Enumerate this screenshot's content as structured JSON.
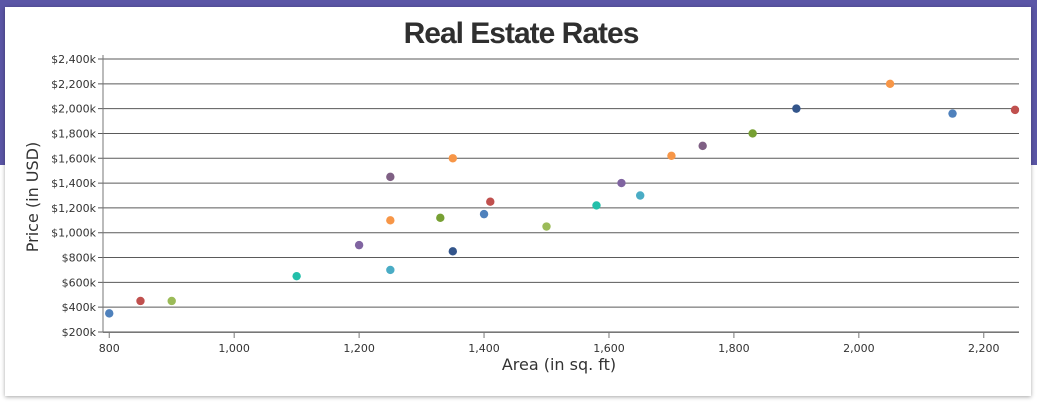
{
  "theme": {
    "band_color": "#5b56a6",
    "grid_color": "#5a5a5a",
    "axis_color": "#777777"
  },
  "chart_data": {
    "type": "scatter",
    "title": "Real Estate Rates",
    "xlabel": "Area (in sq. ft)",
    "ylabel": "Price (in USD)",
    "xlim": [
      790,
      2250
    ],
    "ylim": [
      200,
      2400
    ],
    "grid": true,
    "x_ticks": [
      "800",
      "1,000",
      "1,200",
      "1,400",
      "1,600",
      "1,800",
      "2,000",
      "2,200"
    ],
    "y_ticks": [
      "$200k",
      "$400k",
      "$600k",
      "$800k",
      "$1,000k",
      "$1,200k",
      "$1,400k",
      "$1,600k",
      "$1,800k",
      "$2,000k",
      "$2,200k",
      "$2,400k"
    ],
    "points": [
      {
        "x": 800,
        "y": 350,
        "color": "#4f81bc"
      },
      {
        "x": 850,
        "y": 450,
        "color": "#c0504e"
      },
      {
        "x": 900,
        "y": 450,
        "color": "#9bbb58"
      },
      {
        "x": 1100,
        "y": 650,
        "color": "#23bfaa"
      },
      {
        "x": 1200,
        "y": 900,
        "color": "#8064a1"
      },
      {
        "x": 1250,
        "y": 700,
        "color": "#4aacc5"
      },
      {
        "x": 1250,
        "y": 1100,
        "color": "#f79647"
      },
      {
        "x": 1250,
        "y": 1450,
        "color": "#7f6084"
      },
      {
        "x": 1330,
        "y": 1120,
        "color": "#77a033"
      },
      {
        "x": 1350,
        "y": 850,
        "color": "#33558b"
      },
      {
        "x": 1350,
        "y": 1600,
        "color": "#f79647"
      },
      {
        "x": 1400,
        "y": 1150,
        "color": "#4f81bc"
      },
      {
        "x": 1410,
        "y": 1250,
        "color": "#c0504e"
      },
      {
        "x": 1500,
        "y": 1050,
        "color": "#9bbb58"
      },
      {
        "x": 1580,
        "y": 1220,
        "color": "#23bfaa"
      },
      {
        "x": 1620,
        "y": 1400,
        "color": "#8064a1"
      },
      {
        "x": 1650,
        "y": 1300,
        "color": "#4aacc5"
      },
      {
        "x": 1700,
        "y": 1620,
        "color": "#f79647"
      },
      {
        "x": 1750,
        "y": 1700,
        "color": "#7f6084"
      },
      {
        "x": 1830,
        "y": 1800,
        "color": "#77a033"
      },
      {
        "x": 1900,
        "y": 2000,
        "color": "#33558b"
      },
      {
        "x": 2050,
        "y": 2200,
        "color": "#f79647"
      },
      {
        "x": 2150,
        "y": 1960,
        "color": "#4f81bc"
      },
      {
        "x": 2250,
        "y": 1990,
        "color": "#c0504e"
      }
    ]
  }
}
